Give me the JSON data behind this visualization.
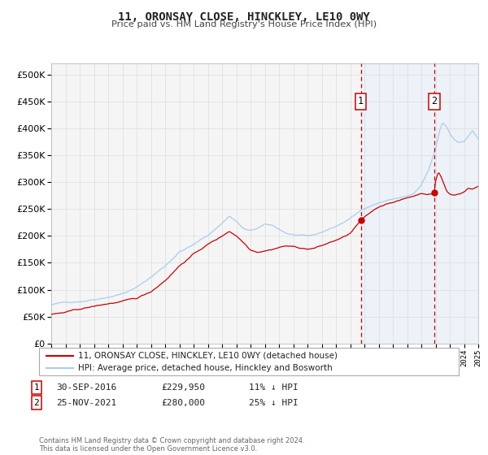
{
  "title": "11, ORONSAY CLOSE, HINCKLEY, LE10 0WY",
  "subtitle": "Price paid vs. HM Land Registry's House Price Index (HPI)",
  "legend_label_red": "11, ORONSAY CLOSE, HINCKLEY, LE10 0WY (detached house)",
  "legend_label_blue": "HPI: Average price, detached house, Hinckley and Bosworth",
  "annotation1_date": "30-SEP-2016",
  "annotation1_price": "£229,950",
  "annotation1_hpi": "11% ↓ HPI",
  "annotation2_date": "25-NOV-2021",
  "annotation2_price": "£280,000",
  "annotation2_hpi": "25% ↓ HPI",
  "footer": "Contains HM Land Registry data © Crown copyright and database right 2024.\nThis data is licensed under the Open Government Licence v3.0.",
  "red_color": "#cc0000",
  "blue_color": "#aaccee",
  "vline1_x": 2016.75,
  "vline2_x": 2021.9,
  "marker1_val": 229950,
  "marker2_val": 280000,
  "ylim": [
    0,
    520000
  ],
  "yticks": [
    0,
    50000,
    100000,
    150000,
    200000,
    250000,
    300000,
    350000,
    400000,
    450000,
    500000
  ],
  "xlim": [
    1995,
    2025
  ],
  "background_color": "#f5f5f5",
  "grid_color": "#dddddd",
  "shaded_color": "#ddeeff"
}
